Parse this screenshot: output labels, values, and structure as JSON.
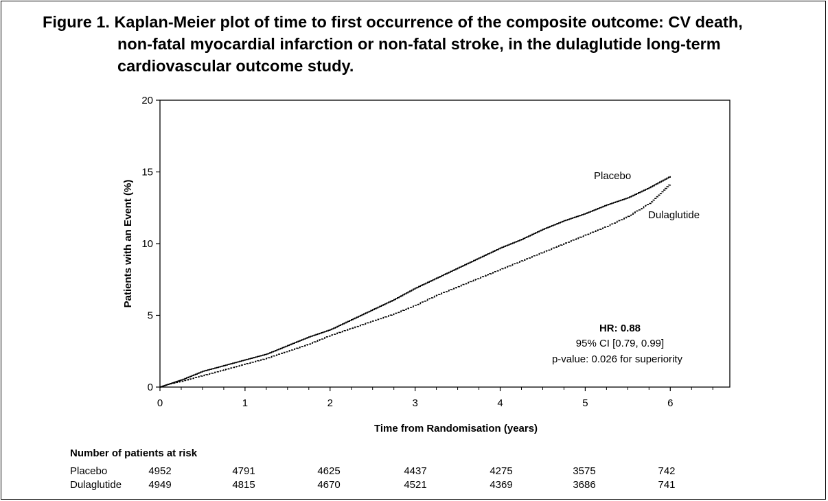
{
  "title": {
    "line1": "Figure 1. Kaplan-Meier plot of time to first occurrence of the composite outcome: CV death,",
    "line2": "non-fatal myocardial infarction or non-fatal stroke, in the dulaglutide long-term",
    "line3": "cardiovascular outcome study."
  },
  "chart_data": {
    "type": "line",
    "xlabel": "Time from Randomisation (years)",
    "ylabel": "Patients with an Event (%)",
    "xlim": [
      0,
      6.7
    ],
    "ylim": [
      0,
      20
    ],
    "xticks": [
      "0",
      "1",
      "2",
      "3",
      "4",
      "5",
      "6"
    ],
    "yticks": [
      "0",
      "5",
      "10",
      "15",
      "20"
    ],
    "grid": false,
    "series": [
      {
        "name": "Placebo",
        "line_style": "solid",
        "x": [
          0,
          0.1,
          0.25,
          0.5,
          0.75,
          1.0,
          1.25,
          1.5,
          1.75,
          2.0,
          2.25,
          2.5,
          2.75,
          3.0,
          3.25,
          3.5,
          3.75,
          4.0,
          4.25,
          4.5,
          4.75,
          5.0,
          5.25,
          5.5,
          5.75,
          6.0
        ],
        "y": [
          0,
          0.2,
          0.5,
          1.1,
          1.5,
          1.9,
          2.3,
          2.9,
          3.5,
          4.0,
          4.7,
          5.4,
          6.1,
          6.9,
          7.6,
          8.3,
          9.0,
          9.7,
          10.3,
          11.0,
          11.6,
          12.1,
          12.7,
          13.2,
          13.9,
          14.7
        ]
      },
      {
        "name": "Dulaglutide",
        "line_style": "dashed",
        "x": [
          0,
          0.1,
          0.25,
          0.5,
          0.75,
          1.0,
          1.25,
          1.5,
          1.75,
          2.0,
          2.25,
          2.5,
          2.75,
          3.0,
          3.25,
          3.5,
          3.75,
          4.0,
          4.25,
          4.5,
          4.75,
          5.0,
          5.25,
          5.5,
          5.75,
          6.0
        ],
        "y": [
          0,
          0.2,
          0.4,
          0.8,
          1.2,
          1.6,
          2.0,
          2.5,
          3.0,
          3.6,
          4.1,
          4.6,
          5.1,
          5.7,
          6.4,
          7.0,
          7.6,
          8.2,
          8.8,
          9.4,
          10.0,
          10.6,
          11.2,
          11.9,
          12.8,
          14.2
        ]
      }
    ],
    "annotations": {
      "hr_label": "HR:",
      "hr_value": "0.88",
      "ci": "95% CI [0.79, 0.99]",
      "pvalue": "p-value: 0.026 for superiority"
    }
  },
  "risk_table": {
    "header": "Number of patients at risk",
    "rows": [
      {
        "label": "Placebo",
        "values": [
          "4952",
          "4791",
          "4625",
          "4437",
          "4275",
          "3575",
          "742"
        ]
      },
      {
        "label": "Dulaglutide",
        "values": [
          "4949",
          "4815",
          "4670",
          "4521",
          "4369",
          "3686",
          "741"
        ]
      }
    ]
  }
}
